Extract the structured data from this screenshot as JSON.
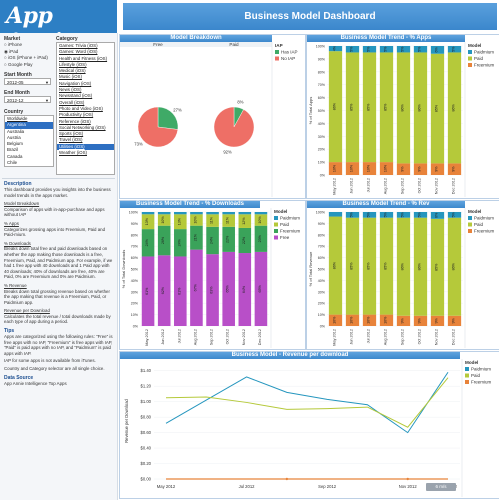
{
  "app": {
    "logo": "App Annie",
    "title": "Business Model Dashboard"
  },
  "sidebar": {
    "market_label": "Market",
    "market_options": [
      "iPhone",
      "iPad",
      "iOS (iPhone + iPad)",
      "Google Play"
    ],
    "market_selected": 1,
    "start_month_label": "Start Month",
    "start_month_value": "2012-05",
    "end_month_label": "End Month",
    "end_month_value": "2012-12",
    "country_label": "Country",
    "country_items": [
      "Worldwide",
      "Argentina",
      "Australia",
      "Austria",
      "Belgium",
      "Brazil",
      "Canada",
      "Chile"
    ],
    "country_selected": 1,
    "category_label": "Category",
    "category_items": [
      "Games: Trivia (iOS)",
      "Games: Word (iOS)",
      "Health and Fitness (iOS)",
      "Lifestyle (iOS)",
      "Medical (iOS)",
      "Music (iOS)",
      "Navigation (iOS)",
      "News (iOS)",
      "Newsstand (iOS)",
      "Overall (iOS)",
      "Photo and Video (iOS)",
      "Productivity (iOS)",
      "Reference (iOS)",
      "Social Networking (iOS)",
      "Sports (iOS)",
      "Travel (iOS)",
      "Utilities (iOS)",
      "Weather (iOS)"
    ],
    "category_selected": 16,
    "description_heading": "Description",
    "description_text": "This dashboard provides you insights into the business model trends in the apps market.",
    "sections": [
      {
        "heading": "Model Breakdown",
        "text": "Comparison of apps with in-app-purchase and apps without IAP"
      },
      {
        "heading": "% Apps",
        "text": "Categorizes grossing apps into Freemium, Paid and Paid-mium."
      },
      {
        "heading": "% Downloads",
        "text": "Breaks down total free and paid downloads based on whether the app making those downloads is a free, Freemium, Paid, and Paidmium app. For example, if we had 1 free app with 40 downloads and 1 Paid app with 40 downloads; 40% of downloads are free, 40% are Paid, 0% are Freemium and 0% are Paidmium."
      },
      {
        "heading": "% Revenue",
        "text": "Breaks down total grossing revenue based on whether the app making that revenue is a Freemium, Paid, or Paidmium app."
      },
      {
        "heading": "Revenue per Download",
        "text": "Calculates the total revenue / total downloads made by each type of app during a period."
      }
    ],
    "tips_heading": "Tips",
    "tips": [
      "Apps are categorized using the following rules: \"Free\" is free apps with no IAP, \"Freemium\" is free apps with IAP, \"Paid\" is paid apps with no IAP, and \"Paidmium\" is paid apps with IAP.",
      "IAP for some apps is not available from iTunes.",
      "Country and Category selector are all single choice."
    ],
    "source_heading": "Data Source",
    "source_text": "App Annie Intelligence Top Apps"
  },
  "panels": {
    "breakdown_title": "Model Breakdown",
    "trend_apps_title": "Business Model Trend - % Apps",
    "trend_downloads_title": "Business Model Trend - %  Downloads",
    "trend_rev_title": "Business Model Trend - % Rev",
    "rpd_title": "Business Model - Revenue per download",
    "rpd_badge": "6 m/s"
  },
  "colors": {
    "paidmium": "#2596be",
    "paid": "#b5c93a",
    "freemium": "#e8833a",
    "free": "#b84fc8",
    "freemium_dl": "#3aa35a",
    "has_iap": "#3faa67",
    "no_iap": "#ee6f66"
  },
  "chart_data": [
    {
      "type": "pie",
      "title": "Model Breakdown",
      "facets": [
        "Free",
        "Paid"
      ],
      "series": [
        {
          "name": "Has IAP"
        },
        {
          "name": "No IAP"
        }
      ],
      "pies": [
        {
          "facet": "Free",
          "values": [
            27,
            73
          ]
        },
        {
          "facet": "Paid",
          "values": [
            8,
            92
          ]
        }
      ],
      "legend_title": "IAP",
      "legend": "right"
    },
    {
      "type": "bar",
      "title": "Business Model Trend - % Apps",
      "ylabel": "% of Total Apps",
      "categories": [
        "May 2012",
        "Jun 2012",
        "Jul 2012",
        "Aug 2012",
        "Sep 2012",
        "Oct 2012",
        "Nov 2012",
        "Dec 2012"
      ],
      "series": [
        {
          "name": "Freemium",
          "values": [
            10,
            10,
            10,
            10,
            9,
            9,
            9,
            9
          ]
        },
        {
          "name": "Paid",
          "values": [
            86,
            85,
            85,
            85,
            86,
            86,
            85,
            86
          ]
        },
        {
          "name": "Paidmium",
          "values": [
            4,
            5,
            5,
            5,
            5,
            5,
            6,
            5
          ]
        }
      ],
      "stacked": true,
      "ylim": [
        0,
        100
      ],
      "legend_title": "Model",
      "legend": "right"
    },
    {
      "type": "bar",
      "title": "Business Model Trend - %  Downloads",
      "ylabel": "% of Total Downloads",
      "categories": [
        "May 2012",
        "Jun 2012",
        "Jul 2012",
        "Aug 2012",
        "Sep 2012",
        "Oct 2012",
        "Nov 2012",
        "Dec 2012"
      ],
      "series": [
        {
          "name": "Free",
          "values": [
            61,
            62,
            61,
            67,
            63,
            65,
            64,
            65
          ]
        },
        {
          "name": "Freemium",
          "values": [
            24,
            26,
            24,
            21,
            24,
            22,
            22,
            23
          ]
        },
        {
          "name": "Paid",
          "values": [
            13,
            10,
            13,
            10,
            11,
            11,
            12,
            10
          ]
        },
        {
          "name": "Paidmium",
          "values": [
            2,
            2,
            2,
            2,
            2,
            2,
            2,
            2
          ]
        }
      ],
      "stacked": true,
      "ylim": [
        0,
        100
      ],
      "legend_title": "Model",
      "legend": "right"
    },
    {
      "type": "bar",
      "title": "Business Model Trend - % Rev",
      "ylabel": "% of Total Revenue",
      "categories": [
        "May 2012",
        "Jun 2012",
        "Jul 2012",
        "Aug 2012",
        "Sep 2012",
        "Oct 2012",
        "Nov 2012",
        "Dec 2012"
      ],
      "series": [
        {
          "name": "Freemium",
          "values": [
            10,
            10,
            10,
            10,
            9,
            9,
            9,
            9
          ]
        },
        {
          "name": "Paid",
          "values": [
            86,
            85,
            85,
            85,
            86,
            86,
            85,
            86
          ]
        },
        {
          "name": "Paidmium",
          "values": [
            4,
            5,
            5,
            5,
            5,
            5,
            6,
            5
          ]
        }
      ],
      "stacked": true,
      "ylim": [
        0,
        100
      ],
      "legend_title": "Model",
      "legend": "right"
    },
    {
      "type": "line",
      "title": "Business Model - Revenue per download",
      "ylabel": "Revenue per Download",
      "x": [
        "May 2012",
        "Jun 2012",
        "Jul 2012",
        "Aug 2012",
        "Sep 2012",
        "Oct 2012",
        "Nov 2012",
        "Dec 2012"
      ],
      "ytick_labels": [
        "$0.00",
        "$0.20",
        "$0.40",
        "$0.60",
        "$0.80",
        "$1.00",
        "$1.20",
        "$1.40"
      ],
      "ylim": [
        0,
        1.5
      ],
      "series": [
        {
          "name": "Paidmium",
          "values": [
            0.72,
            1.02,
            1.32,
            1.12,
            1.03,
            0.96,
            0.6,
            1.38
          ]
        },
        {
          "name": "Paid",
          "values": [
            1.05,
            1.06,
            0.99,
            0.9,
            0.91,
            0.93,
            0.67,
            1.31
          ]
        },
        {
          "name": "Freemium",
          "values": [
            0,
            0,
            0,
            0,
            0,
            0,
            0,
            0
          ]
        }
      ],
      "legend_title": "Model",
      "legend": "right"
    }
  ]
}
